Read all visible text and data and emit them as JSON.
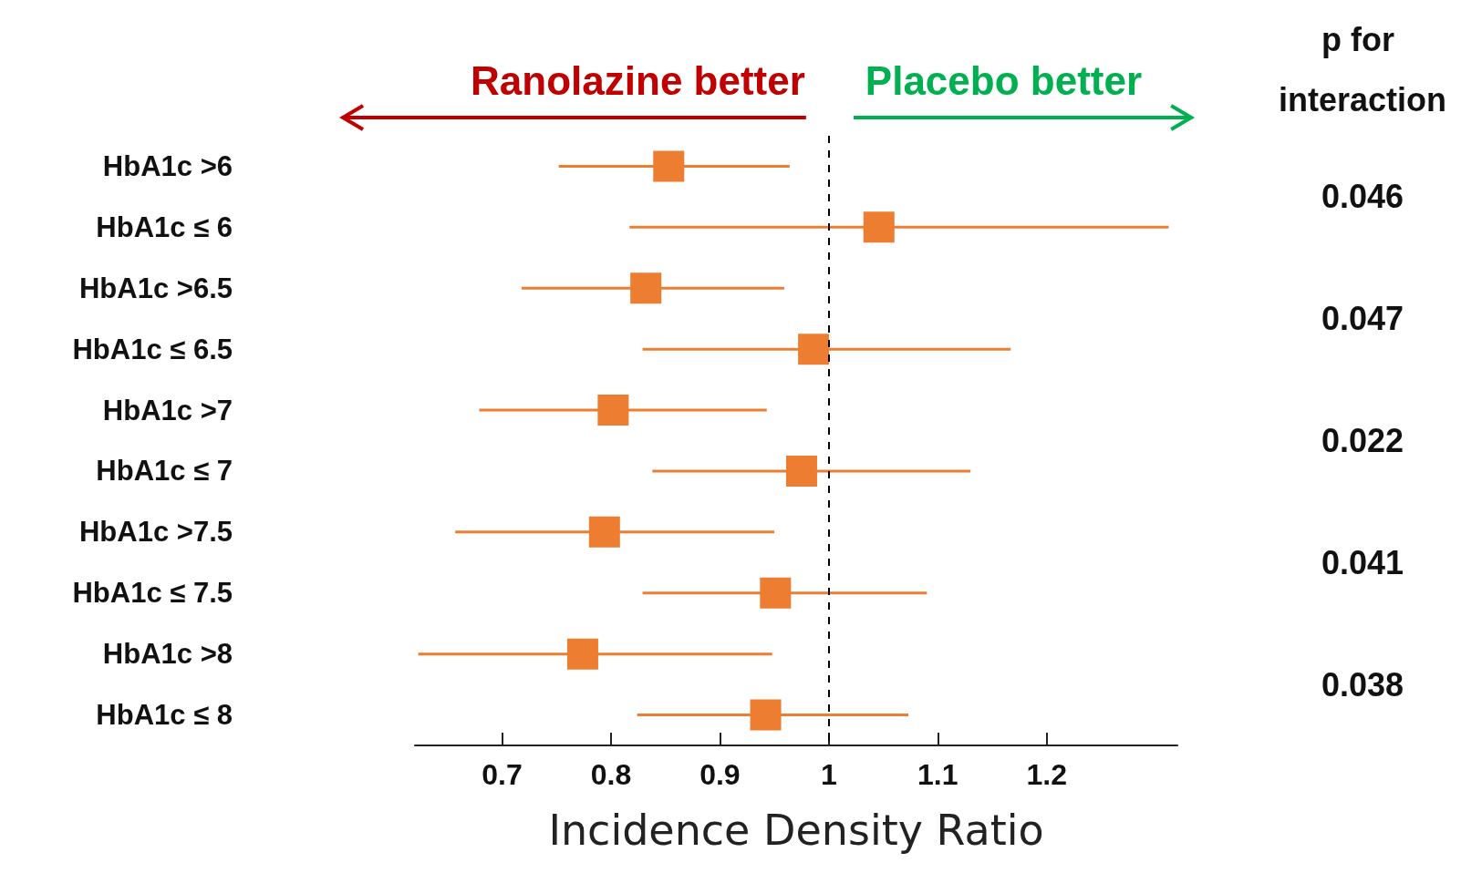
{
  "chart_data": {
    "type": "scatter",
    "orientation": "horizontal",
    "xlabel": "Incidence Density Ratio",
    "categories": [
      "HbA1c >6",
      "HbA1c ≤ 6",
      "HbA1c >6.5",
      "HbA1c ≤ 6.5",
      "HbA1c >7",
      "HbA1c ≤ 7",
      "HbA1c >7.5",
      "HbA1c ≤ 7.5",
      "HbA1c >8",
      "HbA1c ≤ 8"
    ],
    "values": [
      0.853,
      1.046,
      0.832,
      0.986,
      0.802,
      0.975,
      0.794,
      0.951,
      0.774,
      0.942
    ],
    "errors": [
      [
        0.752,
        0.964
      ],
      [
        0.817,
        1.312
      ],
      [
        0.718,
        0.959
      ],
      [
        0.829,
        1.167
      ],
      [
        0.679,
        0.943
      ],
      [
        0.838,
        1.13
      ],
      [
        0.657,
        0.95
      ],
      [
        0.829,
        1.09
      ],
      [
        0.623,
        0.948
      ],
      [
        0.824,
        1.073
      ]
    ],
    "color": "#ed7d31",
    "marker": "square",
    "xlim": [
      0.62,
      1.32
    ],
    "xticks": [
      0.7,
      0.8,
      0.9,
      1,
      1.1,
      1.2
    ],
    "grid": false,
    "legend": false,
    "ref_lines": [
      {
        "axis": "x",
        "value": 1,
        "line_style": "dashed",
        "color": "#000000"
      }
    ],
    "annotations": [
      "Ranolazine better",
      "Placebo better",
      "p for interaction",
      "0.046",
      "0.047",
      "0.022",
      "0.041",
      "0.038"
    ]
  }
}
